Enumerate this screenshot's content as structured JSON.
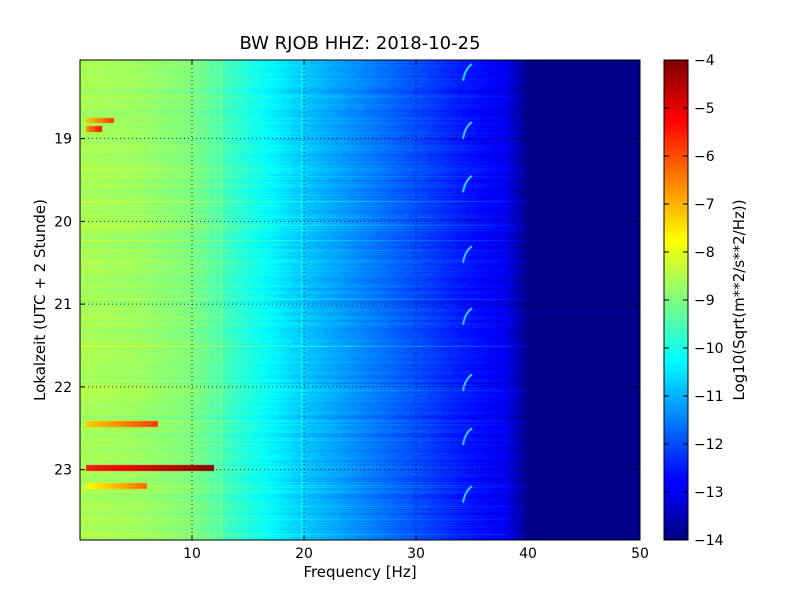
{
  "chart_data": {
    "type": "heatmap",
    "title": "BW RJOB HHZ: 2018-10-25",
    "xlabel": "Frequency [Hz]",
    "ylabel": "Lokalzeit (UTC + 2 Stunde)",
    "xlim": [
      0,
      50
    ],
    "ylim": [
      18.05,
      23.85
    ],
    "y_inverted": true,
    "x_ticks": [
      10,
      20,
      30,
      40,
      50
    ],
    "y_ticks": [
      19,
      20,
      21,
      22,
      23
    ],
    "grid": true,
    "colormap": "jet",
    "colorbar": {
      "label": "Log10(Sqrt(m**2/s**2/Hz))",
      "range": [
        -14,
        -4
      ],
      "ticks": [
        -4,
        -5,
        -6,
        -7,
        -8,
        -9,
        -10,
        -11,
        -12,
        -13,
        -14
      ]
    },
    "background_profile": {
      "frequency_hz": [
        0.5,
        5,
        10,
        13,
        20,
        25,
        30,
        34,
        38,
        40,
        50
      ],
      "log10_amplitude": [
        -8.6,
        -8.7,
        -9.0,
        -9.6,
        -10.8,
        -11.4,
        -12.0,
        -12.5,
        -12.9,
        -13.9,
        -13.9
      ]
    },
    "features": {
      "low_freq_bursts": [
        {
          "time": 18.78,
          "freq_range": [
            0.5,
            3
          ],
          "level": -7.3
        },
        {
          "time": 18.88,
          "freq_range": [
            0.5,
            2
          ],
          "level": -6.8
        },
        {
          "time": 22.45,
          "freq_range": [
            0.5,
            7
          ],
          "level": -7.3
        },
        {
          "time": 22.98,
          "freq_range": [
            0.5,
            12
          ],
          "level": -5.6
        },
        {
          "time": 23.2,
          "freq_range": [
            0.5,
            6
          ],
          "level": -7.8
        }
      ],
      "vertical_lines_hz": [
        11.2,
        12.0,
        12.6,
        19.8
      ],
      "chirp_times": [
        18.1,
        18.8,
        19.45,
        20.3,
        21.05,
        21.85,
        22.5,
        23.2
      ]
    }
  }
}
